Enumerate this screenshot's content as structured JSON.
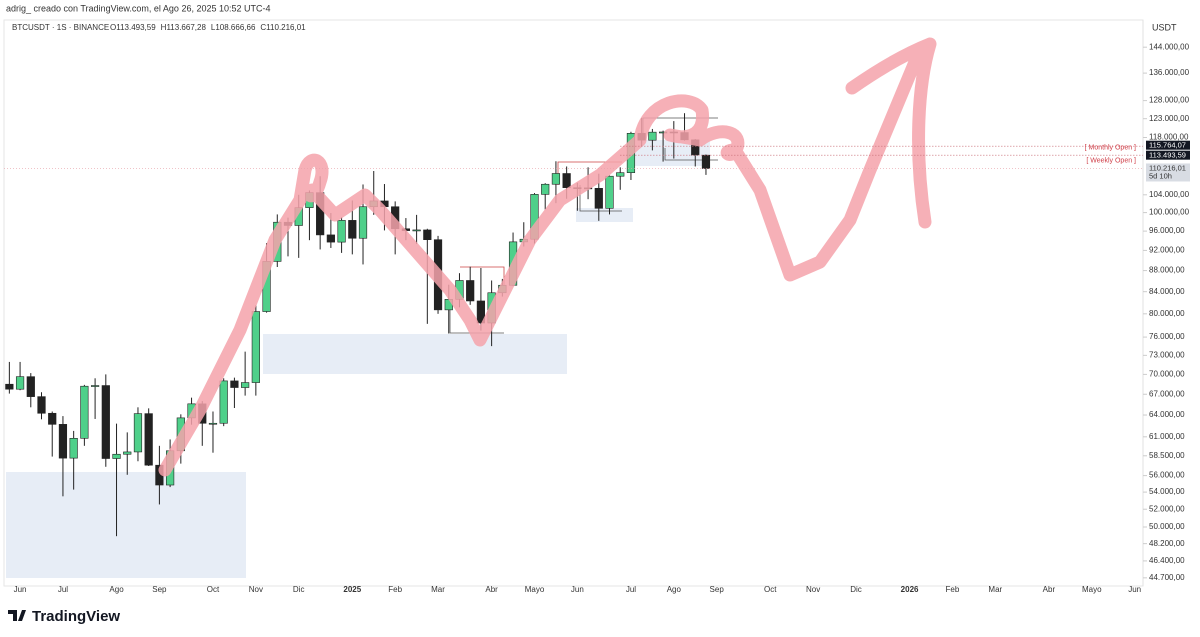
{
  "header": {
    "author_line": "adrig_ creado con TradingView.com, el Ago 26, 2025 10:52 UTC-4"
  },
  "footer": {
    "brand": "TradingView"
  },
  "chart_data": {
    "type": "candlestick",
    "title": "BTCUSDT · 1S · BINANCE",
    "ohlc_header": [
      "O113.493,59",
      "H113.667,28",
      "L108.666,66",
      "C110.216,01"
    ],
    "currency": "USDT",
    "log_scale": true,
    "up_color": "#4fd08a",
    "down_color": "#222222",
    "categories": [
      null,
      "Jun",
      null,
      null,
      null,
      "Jul",
      null,
      null,
      null,
      null,
      "Ago",
      null,
      null,
      null,
      "Sep",
      null,
      null,
      null,
      null,
      "Oct",
      null,
      null,
      null,
      "Nov",
      null,
      null,
      null,
      "Dic",
      null,
      null,
      null,
      null,
      "2025",
      null,
      null,
      null,
      "Feb",
      null,
      null,
      null,
      "Mar",
      null,
      null,
      null,
      null,
      "Abr",
      null,
      null,
      null,
      "Mayo",
      null,
      null,
      null,
      "Jun",
      null,
      null,
      null,
      null,
      "Jul",
      null,
      null,
      null,
      "Ago",
      null,
      null,
      null,
      "Sep",
      null,
      null,
      null,
      null,
      "Oct",
      null,
      null,
      null,
      "Nov",
      null,
      null,
      null,
      "Dic",
      null,
      null,
      null,
      null,
      "2026",
      null,
      null,
      null,
      "Feb",
      null,
      null,
      null,
      "Mar",
      null,
      null,
      null,
      null,
      "Abr",
      null,
      null,
      null,
      "Mayo",
      null,
      null,
      null,
      "Jun"
    ],
    "open": [
      68500,
      67750,
      69650,
      66650,
      64250,
      62700,
      58200,
      60800,
      68200,
      68300,
      58150,
      58700,
      59000,
      64200,
      57300,
      54850,
      59150,
      63600,
      65600,
      62850,
      62850,
      69000,
      68000,
      68750,
      80400,
      89800,
      97900,
      97200,
      101100,
      104500,
      95200,
      93700,
      98300,
      94500,
      101300,
      102600,
      101300,
      96500,
      96100,
      96250,
      94200,
      80700,
      82600,
      86100,
      82300,
      78400,
      83800,
      85200,
      93750,
      94300,
      104100,
      106450,
      109000,
      105650,
      105600,
      105500,
      100950,
      108350,
      109200,
      119100,
      117300,
      119400,
      119450,
      119300,
      117400,
      113493.59,
      null,
      null,
      null,
      null,
      null,
      null,
      null,
      null,
      null,
      null,
      null,
      null,
      null,
      null,
      null,
      null,
      null,
      null,
      null,
      null,
      null,
      null,
      null,
      null,
      null,
      null,
      null,
      null,
      null,
      null,
      null,
      null,
      null,
      null,
      null,
      null,
      null,
      null,
      null,
      null
    ],
    "high": [
      71950,
      71950,
      70200,
      67300,
      64500,
      63850,
      61800,
      68400,
      69400,
      70000,
      62800,
      61600,
      65100,
      64950,
      59800,
      60650,
      64100,
      66500,
      66000,
      64500,
      69400,
      69500,
      73600,
      81500,
      93500,
      99600,
      98900,
      104000,
      105000,
      108350,
      99900,
      99000,
      102700,
      106400,
      109600,
      106500,
      102500,
      98800,
      99500,
      96500,
      95000,
      85300,
      87500,
      88750,
      88500,
      86100,
      86400,
      95700,
      97900,
      104400,
      106700,
      111980,
      110700,
      106800,
      110500,
      108950,
      108500,
      110500,
      119500,
      123200,
      120250,
      119800,
      122350,
      124500,
      117600,
      113667.28,
      null,
      null,
      null,
      null,
      null,
      null,
      null,
      null,
      null,
      null,
      null,
      null,
      null,
      null,
      null,
      null,
      null,
      null,
      null,
      null,
      null,
      null,
      null,
      null,
      null,
      null,
      null,
      null,
      null,
      null,
      null,
      null,
      null,
      null,
      null,
      null,
      null,
      null,
      null,
      null
    ],
    "low": [
      67100,
      67600,
      65100,
      63400,
      58400,
      53500,
      54300,
      59800,
      63450,
      57100,
      49000,
      56100,
      57800,
      57200,
      52550,
      54600,
      57500,
      62650,
      59800,
      58900,
      62450,
      65000,
      66800,
      66800,
      80200,
      88700,
      90800,
      90500,
      94100,
      92200,
      92500,
      91500,
      91200,
      89200,
      99500,
      96150,
      91200,
      94100,
      93300,
      78250,
      80000,
      76600,
      81150,
      81600,
      77100,
      74500,
      83100,
      85100,
      92800,
      93400,
      100700,
      102100,
      103100,
      100400,
      103000,
      98200,
      99600,
      105150,
      107450,
      115700,
      114700,
      111900,
      112650,
      117200,
      110700,
      108666.66,
      null,
      null,
      null,
      null,
      null,
      null,
      null,
      null,
      null,
      null,
      null,
      null,
      null,
      null,
      null,
      null,
      null,
      null,
      null,
      null,
      null,
      null,
      null,
      null,
      null,
      null,
      null,
      null,
      null,
      null,
      null,
      null,
      null,
      null,
      null,
      null,
      null,
      null,
      null,
      null
    ],
    "close": [
      67750,
      69650,
      66650,
      64250,
      62700,
      58200,
      60800,
      68200,
      68300,
      58150,
      58700,
      59000,
      64200,
      57300,
      54850,
      59150,
      63600,
      65600,
      62850,
      62850,
      69000,
      68000,
      68750,
      80400,
      89800,
      97900,
      97200,
      101100,
      104500,
      95200,
      93700,
      98300,
      94500,
      101300,
      102600,
      101300,
      96500,
      96100,
      96250,
      94200,
      80700,
      82600,
      86100,
      82300,
      78400,
      83800,
      85200,
      93750,
      94300,
      104100,
      106450,
      109000,
      105650,
      105600,
      105500,
      100950,
      108350,
      109200,
      119100,
      117300,
      119400,
      119450,
      119300,
      117400,
      113493.59,
      110216.01,
      null,
      null,
      null,
      null,
      null,
      null,
      null,
      null,
      null,
      null,
      null,
      null,
      null,
      null,
      null,
      null,
      null,
      null,
      null,
      null,
      null,
      null,
      null,
      null,
      null,
      null,
      null,
      null,
      null,
      null,
      null,
      null,
      null,
      null,
      null,
      null,
      null,
      null,
      null,
      null
    ],
    "ylim": [
      44000,
      146300
    ],
    "yticks": [
      {
        "value": 144000,
        "label": "144.000,00"
      },
      {
        "value": 136000,
        "label": "136.000,00"
      },
      {
        "value": 128000,
        "label": "128.000,00"
      },
      {
        "value": 123000,
        "label": "123.000,00"
      },
      {
        "value": 118000,
        "label": "118.000,00"
      },
      {
        "value": 104000,
        "label": "104.000,00"
      },
      {
        "value": 100000,
        "label": "100.000,00"
      },
      {
        "value": 96000,
        "label": "96.000,00"
      },
      {
        "value": 92000,
        "label": "92.000,00"
      },
      {
        "value": 88000,
        "label": "88.000,00"
      },
      {
        "value": 84000,
        "label": "84.000,00"
      },
      {
        "value": 80000,
        "label": "80.000,00"
      },
      {
        "value": 76000,
        "label": "76.000,00"
      },
      {
        "value": 73000,
        "label": "73.000,00"
      },
      {
        "value": 70000,
        "label": "70.000,00"
      },
      {
        "value": 67000,
        "label": "67.000,00"
      },
      {
        "value": 64000,
        "label": "64.000,00"
      },
      {
        "value": 61000,
        "label": "61.000,00"
      },
      {
        "value": 58500,
        "label": "58.500,00"
      },
      {
        "value": 56000,
        "label": "56.000,00"
      },
      {
        "value": 54000,
        "label": "54.000,00"
      },
      {
        "value": 52000,
        "label": "52.000,00"
      },
      {
        "value": 50000,
        "label": "50.000,00"
      },
      {
        "value": 48200,
        "label": "48.200,00"
      },
      {
        "value": 46400,
        "label": "46.400,00"
      },
      {
        "value": 44700,
        "label": "44.700,00"
      }
    ],
    "price_lines": [
      {
        "value": 115764.07,
        "label": "115.764,07",
        "name": "[ Monthly Open ]"
      },
      {
        "value": 113493.59,
        "label": "113.493,59",
        "name": "[ Weekly Open ]"
      }
    ],
    "current_price": {
      "value": 110216.01,
      "label": "110.216,01",
      "countdown": "5d 10h"
    }
  }
}
